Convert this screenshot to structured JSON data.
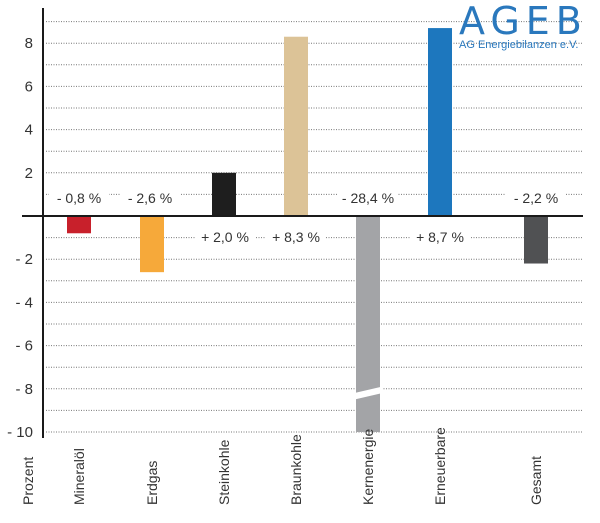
{
  "logo": {
    "title": "AGEB",
    "subtitle": "AG Energiebilanzen e.V.",
    "color": "#2a78bd"
  },
  "chart_data": {
    "type": "bar",
    "title": "",
    "xlabel": "",
    "ylabel": "Prozent",
    "ylim": [
      -10,
      9
    ],
    "yticks": [
      8,
      6,
      4,
      2,
      -2,
      -4,
      -6,
      -8,
      -10
    ],
    "ytick_labels": [
      "8",
      "6",
      "4",
      "2",
      "- 2",
      "- 4",
      "- 6",
      "- 8",
      "- 10"
    ],
    "grid": true,
    "grid_style": "dotted",
    "categories": [
      "Mineralöl",
      "Erdgas",
      "Steinkohle",
      "Braunkohle",
      "Kernenergie",
      "Erneuerbare",
      "Gesamt"
    ],
    "values": [
      -0.8,
      -2.6,
      2.0,
      8.3,
      -28.4,
      8.7,
      -2.2
    ],
    "data_labels": [
      "- 0,8 %",
      "- 2,6 %",
      "+ 2,0 %",
      "+ 8,3 %",
      "- 28,4 %",
      "+ 8,7 %",
      "- 2,2 %"
    ],
    "colors": [
      "#c8202b",
      "#f6a93a",
      "#1e1e1e",
      "#dcc397",
      "#a3a4a7",
      "#1d77be",
      "#505153"
    ],
    "annotations": [
      "Kernenergie bar is truncated (axis break) at -10"
    ]
  }
}
